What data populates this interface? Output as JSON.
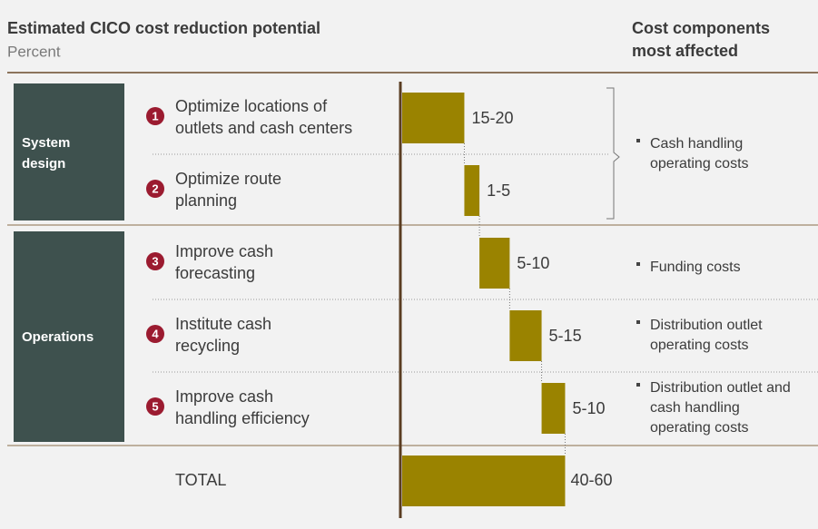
{
  "title": "Estimated CICO cost reduction potential",
  "subtitle": "Percent",
  "right_header": [
    "Cost components",
    "most affected"
  ],
  "groups": [
    {
      "label": [
        "System",
        "design"
      ]
    },
    {
      "label": [
        "Operations"
      ]
    }
  ],
  "chart_data": {
    "type": "waterfall",
    "item_numbers": [
      1,
      2,
      3,
      4,
      5
    ],
    "categories": [
      [
        "Optimize locations of",
        "outlets and cash centers"
      ],
      [
        "Optimize route",
        "planning"
      ],
      [
        "Improve cash",
        "forecasting"
      ],
      [
        "Institute cash",
        "recycling"
      ],
      [
        "Improve cash",
        "handling efficiency"
      ]
    ],
    "values": [
      18.5,
      4.5,
      9,
      9.5,
      7
    ],
    "value_labels": [
      "15-20",
      "1-5",
      "5-10",
      "5-15",
      "5-10"
    ],
    "total_label": "TOTAL",
    "total": 48.5,
    "total_value_label": "40-60",
    "color": "#9a8300"
  },
  "components": [
    {
      "lines": [
        "Cash handling",
        "operating costs"
      ]
    },
    {
      "lines": [
        "Funding costs"
      ]
    },
    {
      "lines": [
        "Distribution outlet",
        "operating costs"
      ]
    },
    {
      "lines": [
        "Distribution outlet and",
        "cash handling",
        "operating costs"
      ]
    }
  ]
}
